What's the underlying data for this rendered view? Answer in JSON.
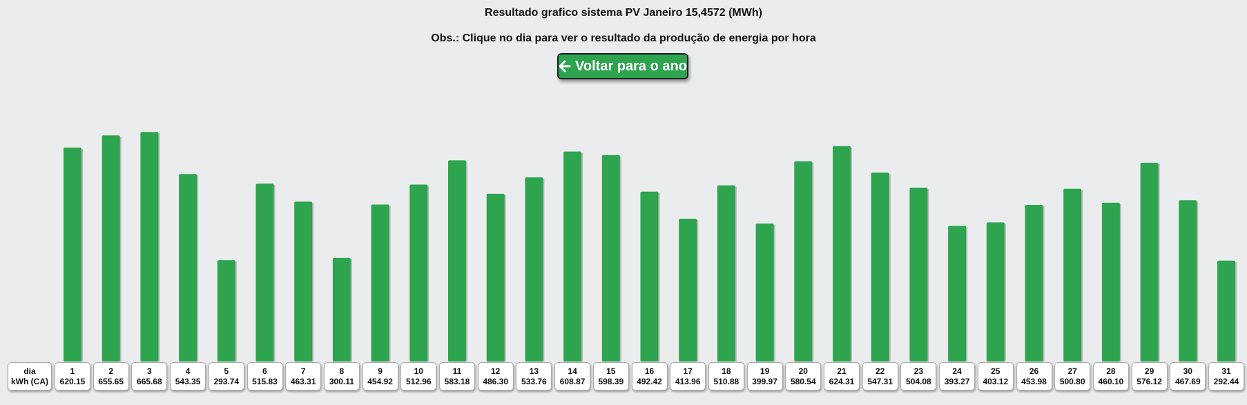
{
  "header": {
    "title": "Resultado grafico sistema PV Janeiro 15,4572 (MWh)",
    "subtitle": "Obs.: Clique no dia para ver o resultado da produção de energia por hora",
    "back_button_label": "Voltar para o ano",
    "back_button_icon": "arrow-left-icon"
  },
  "table_header": {
    "row1": "dia",
    "row2": "kWh (CA)"
  },
  "colors": {
    "bar": "#2ea44f",
    "button": "#2ea44f",
    "background": "#ebecee"
  },
  "chart_data": {
    "type": "bar",
    "categories": [
      "1",
      "2",
      "3",
      "4",
      "5",
      "6",
      "7",
      "8",
      "9",
      "10",
      "11",
      "12",
      "13",
      "14",
      "15",
      "16",
      "17",
      "18",
      "19",
      "20",
      "21",
      "22",
      "23",
      "24",
      "25",
      "26",
      "27",
      "28",
      "29",
      "30",
      "31"
    ],
    "values": [
      620.15,
      655.65,
      665.68,
      543.35,
      293.74,
      515.83,
      463.31,
      300.11,
      454.92,
      512.96,
      583.18,
      486.3,
      533.76,
      608.87,
      598.39,
      492.42,
      413.96,
      510.88,
      399.97,
      580.54,
      624.31,
      547.31,
      504.08,
      393.27,
      403.12,
      453.98,
      500.8,
      460.1,
      576.12,
      467.69,
      292.44
    ],
    "value_labels": [
      "620.15",
      "655.65",
      "665.68",
      "543.35",
      "293.74",
      "515.83",
      "463.31",
      "300.11",
      "454.92",
      "512.96",
      "583.18",
      "486.30",
      "533.76",
      "608.87",
      "598.39",
      "492.42",
      "413.96",
      "510.88",
      "399.97",
      "580.54",
      "624.31",
      "547.31",
      "504.08",
      "393.27",
      "403.12",
      "453.98",
      "500.80",
      "460.10",
      "576.12",
      "467.69",
      "292.44"
    ],
    "title": "Resultado grafico sistema PV Janeiro 15,4572 (MWh)",
    "xlabel": "dia",
    "ylabel": "kWh (CA)",
    "grid": false,
    "legend": "none"
  }
}
